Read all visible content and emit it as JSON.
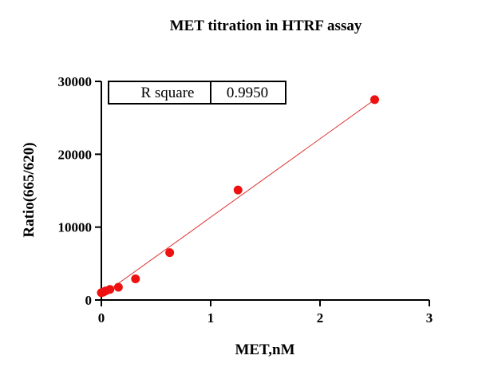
{
  "chart_data": {
    "type": "scatter",
    "title": "MET titration in HTRF assay",
    "xlabel": "MET,nM",
    "ylabel": "Ratio(665/620)",
    "xlim": [
      0,
      3
    ],
    "ylim": [
      0,
      30000
    ],
    "x_ticks": [
      0,
      1,
      2,
      3
    ],
    "y_ticks": [
      0,
      10000,
      20000,
      30000
    ],
    "x_tick_labels": [
      "0",
      "1",
      "2",
      "3"
    ],
    "y_tick_labels": [
      "0",
      "10000",
      "20000",
      "30000"
    ],
    "series": [
      {
        "points": [
          {
            "x": 0.0,
            "y": 1000
          },
          {
            "x": 0.0195,
            "y": 1100
          },
          {
            "x": 0.039,
            "y": 1250
          },
          {
            "x": 0.078,
            "y": 1450
          },
          {
            "x": 0.156,
            "y": 1750
          },
          {
            "x": 0.3125,
            "y": 2900
          },
          {
            "x": 0.625,
            "y": 6500
          },
          {
            "x": 1.25,
            "y": 15100
          },
          {
            "x": 2.5,
            "y": 27500
          }
        ]
      }
    ],
    "fit_line": {
      "x": [
        0.0,
        2.5
      ],
      "y": [
        600,
        27500
      ]
    },
    "stats_box": {
      "label": "R square",
      "value": "0.9950"
    },
    "grid": false,
    "colors": {
      "points": "#ee1111",
      "line": "#e03030",
      "axes": "#000000"
    }
  }
}
